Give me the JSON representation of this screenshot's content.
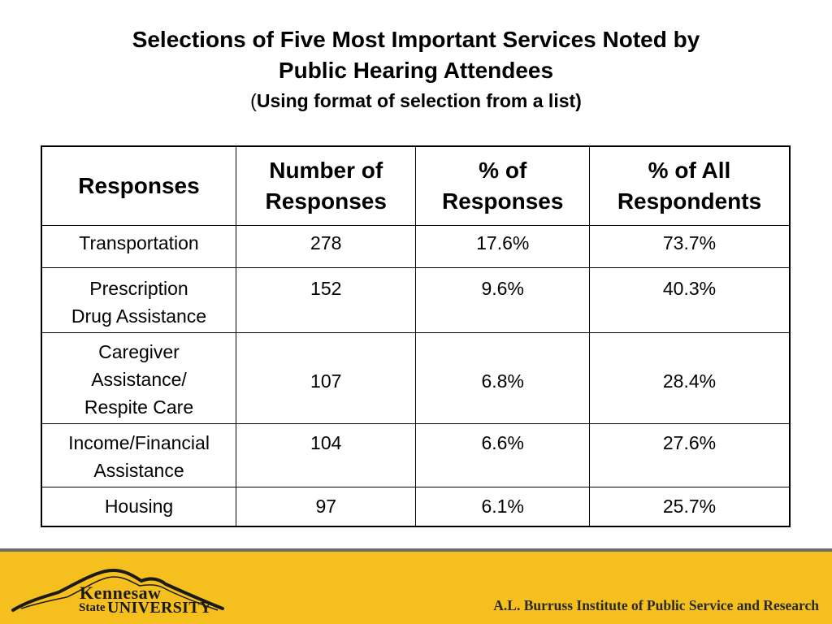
{
  "title": {
    "line1": "Selections of Five Most Important Services Noted by",
    "line2": "Public Hearing Attendees",
    "subtitle_open": "(",
    "subtitle_text": "Using format of selection from a list)"
  },
  "table": {
    "headers": [
      {
        "line1": "Responses",
        "line2": ""
      },
      {
        "line1": "Number of",
        "line2": "Responses"
      },
      {
        "line1": "% of",
        "line2": "Responses"
      },
      {
        "line1": "% of All",
        "line2": "Respondents"
      }
    ],
    "rows": [
      {
        "response_lines": [
          "Transportation"
        ],
        "count": "278",
        "pct_responses": "17.6%",
        "pct_respondents": "73.7%"
      },
      {
        "response_lines": [
          "Prescription",
          "Drug Assistance"
        ],
        "count": "152",
        "pct_responses": "9.6%",
        "pct_respondents": "40.3%"
      },
      {
        "response_lines": [
          "Caregiver",
          "Assistance/",
          "Respite Care"
        ],
        "count": "107",
        "pct_responses": "6.8%",
        "pct_respondents": "28.4%"
      },
      {
        "response_lines": [
          "Income/Financial",
          "Assistance"
        ],
        "count": "104",
        "pct_responses": "6.6%",
        "pct_respondents": "27.6%"
      },
      {
        "response_lines": [
          "Housing"
        ],
        "count": "97",
        "pct_responses": "6.1%",
        "pct_respondents": "25.7%"
      }
    ]
  },
  "footer": {
    "logo_word1": "Kennesaw",
    "logo_word2": "State",
    "logo_word3": "UNIVERSITY",
    "institute": "A.L. Burruss Institute of Public Service and Research",
    "background_color": "#f5c01d",
    "logo_icon": "mountain-outline-icon"
  }
}
